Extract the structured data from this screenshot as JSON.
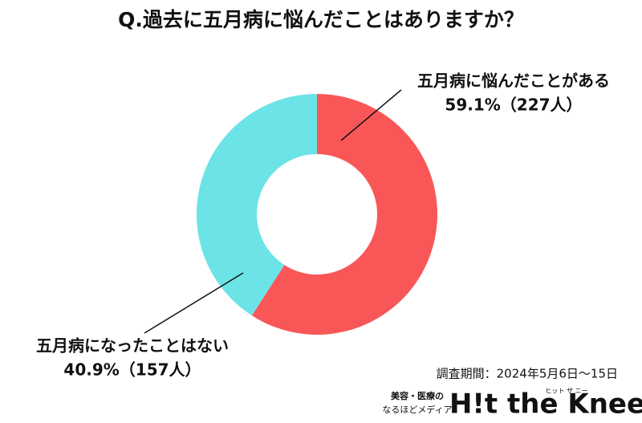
{
  "chart_data": {
    "type": "donut",
    "title": "Q.過去に五月病に悩んだことはありますか？",
    "categories": [
      "五月病に悩んだことがある",
      "五月病になったことはない"
    ],
    "values": [
      59.1,
      40.9
    ],
    "value_labels": [
      "59.1%（227人）",
      "40.9%（157人）"
    ],
    "colors": [
      "#f95757",
      "#6ce3e6"
    ],
    "footnote": "調査期間：2024年5月6日〜15日"
  },
  "logo": {
    "tagline": [
      "美容・医療の",
      "なるほどメディア"
    ],
    "name": "H!t the Knee",
    "ruby": "ヒット ザ ニー"
  }
}
